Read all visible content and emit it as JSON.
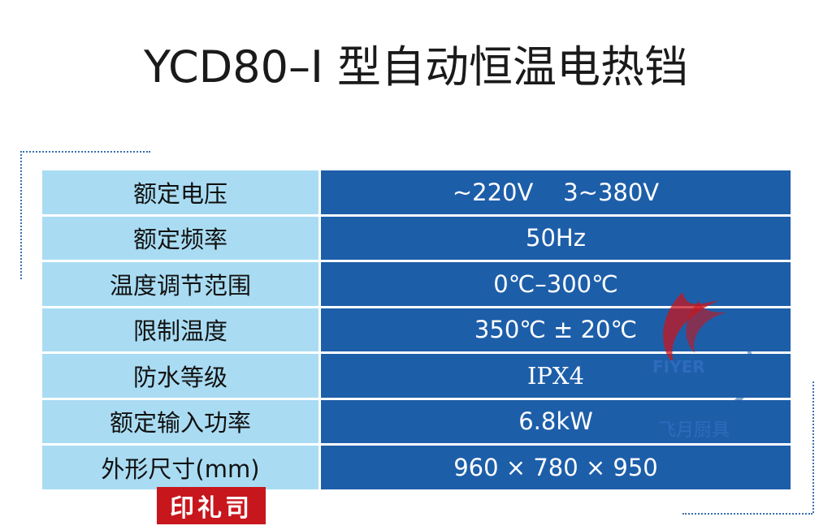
{
  "header": {
    "title": "YCD80–I 型自动恒温电热铛"
  },
  "table": {
    "rows": [
      [
        "额定电压",
        "~220V    3~380V"
      ],
      [
        "额定频率",
        "50Hz"
      ],
      [
        "温度调节范围",
        "0℃–300℃"
      ],
      [
        "限制温度",
        "350℃ ± 20℃"
      ],
      [
        "防水等级",
        "IPX4"
      ],
      [
        "额定输入功率",
        "6.8kW"
      ],
      [
        "外形尺寸(mm)",
        "960 × 780 × 950"
      ]
    ]
  },
  "watermark": {
    "brand": "FIYER",
    "name": "飞月厨具"
  },
  "seal": {
    "text": "印礼司"
  }
}
